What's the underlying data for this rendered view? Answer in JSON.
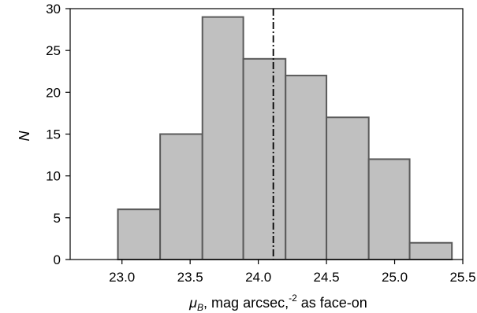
{
  "chart_data": {
    "type": "bar",
    "title": "",
    "xlabel": {
      "symbol": "μ",
      "subscript": "B",
      "text": ", mag arcsec,",
      "superscript": "-2",
      "suffix": " as face-on"
    },
    "ylabel": "N",
    "xlim": [
      22.62,
      25.5
    ],
    "ylim": [
      0,
      30
    ],
    "xticks": [
      "23.0",
      "23.5",
      "24.0",
      "24.5",
      "25.0",
      "25.5"
    ],
    "yticks": [
      "0",
      "5",
      "10",
      "15",
      "20",
      "25",
      "30"
    ],
    "bins": [
      {
        "left": 22.97,
        "right": 23.28,
        "count": 6
      },
      {
        "left": 23.28,
        "right": 23.59,
        "count": 15
      },
      {
        "left": 23.59,
        "right": 23.89,
        "count": 29
      },
      {
        "left": 23.89,
        "right": 24.2,
        "count": 24
      },
      {
        "left": 24.2,
        "right": 24.5,
        "count": 22
      },
      {
        "left": 24.5,
        "right": 24.81,
        "count": 17
      },
      {
        "left": 24.81,
        "right": 25.11,
        "count": 12
      },
      {
        "left": 25.11,
        "right": 25.42,
        "count": 2
      }
    ],
    "reference_line_x": 24.11,
    "grid": false,
    "colors": {
      "bar_fill": "#c0c0c0",
      "bar_edge": "#5a5a5a",
      "axis": "#000000",
      "reference_line": "#000000"
    }
  }
}
